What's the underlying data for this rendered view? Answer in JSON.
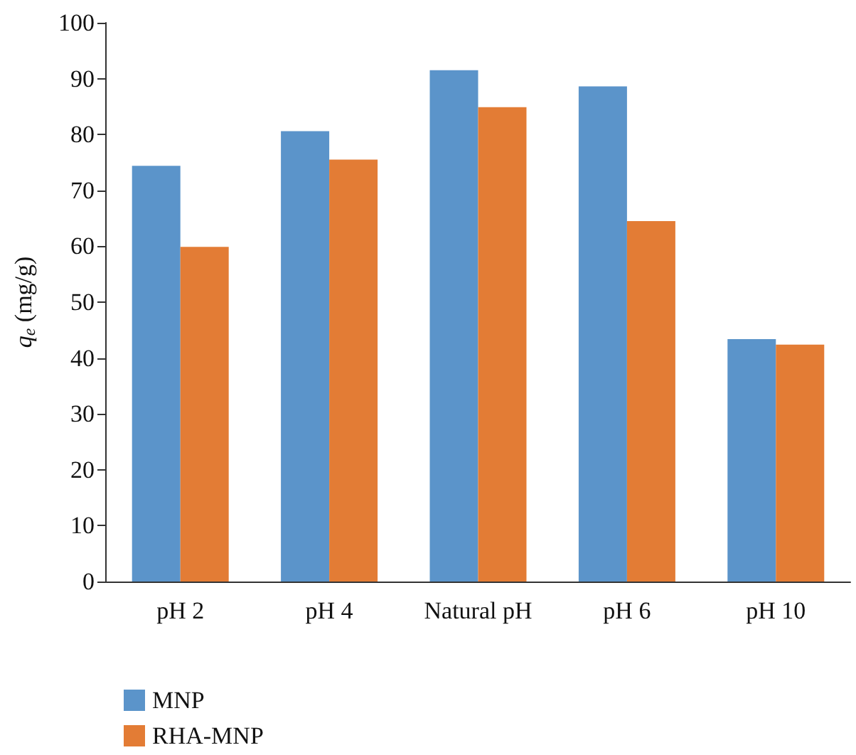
{
  "chart_data": {
    "type": "bar",
    "ylabel": "q$_{e}$ (mg/g)",
    "categories": [
      "pH 2",
      "pH 4",
      "Natural pH",
      "pH 6",
      "pH 10"
    ],
    "series": [
      {
        "name": "MNP",
        "color": "#5b94ca",
        "values": [
          74.4,
          80.6,
          91.5,
          88.6,
          43.4
        ]
      },
      {
        "name": "RHA-MNP",
        "color": "#e37c35",
        "values": [
          59.9,
          75.5,
          84.9,
          64.5,
          42.4
        ]
      }
    ],
    "ylim": [
      0,
      100
    ],
    "yticks": [
      0,
      10,
      20,
      30,
      40,
      50,
      60,
      70,
      80,
      90,
      100
    ],
    "grid": false,
    "legend": "bottom left"
  }
}
